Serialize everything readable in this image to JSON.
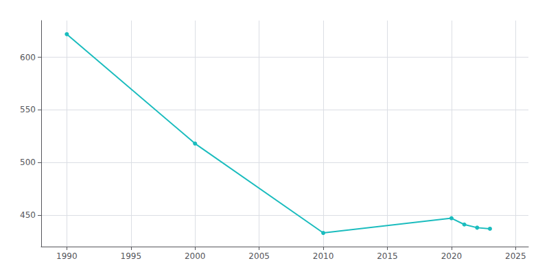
{
  "chart_data": {
    "type": "line",
    "x": [
      1990,
      2000,
      2010,
      2020,
      2021,
      2022,
      2023
    ],
    "values": [
      622,
      518,
      433,
      447,
      441,
      438,
      437
    ],
    "color": "#1ABCBE",
    "marker": "circle",
    "xlim": [
      1988,
      2026
    ],
    "ylim": [
      420,
      635
    ],
    "xticks": [
      1990,
      1995,
      2000,
      2005,
      2010,
      2015,
      2020,
      2025
    ],
    "yticks": [
      450,
      500,
      550,
      600
    ],
    "grid": true
  }
}
